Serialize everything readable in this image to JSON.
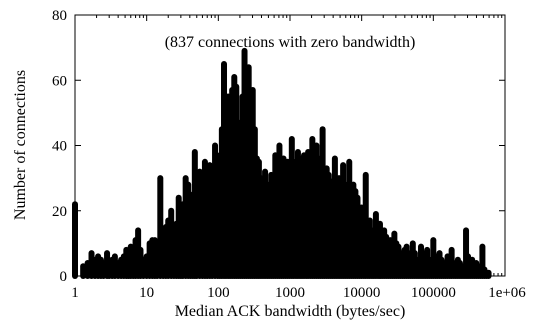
{
  "chart_data": {
    "type": "bar",
    "xlabel": "Median ACK bandwidth (bytes/sec)",
    "ylabel": "Number of connections",
    "annotation": "(837 connections with zero bandwidth)",
    "x_scale": "log",
    "xlim": [
      1,
      1000000
    ],
    "ylim": [
      0,
      80
    ],
    "x_ticks": [
      1,
      10,
      100,
      1000,
      10000,
      100000,
      1000000
    ],
    "x_tick_labels": [
      "1",
      "10",
      "100",
      "1000",
      "10000",
      "100000",
      "1e+06"
    ],
    "y_ticks": [
      0,
      20,
      40,
      60,
      80
    ],
    "y_tick_labels": [
      "0",
      "20",
      "40",
      "60",
      "80"
    ],
    "bar_color": "#000000",
    "x": [
      1.0,
      1.3,
      1.5,
      1.7,
      1.9,
      2.1,
      2.3,
      2.5,
      2.8,
      3.0,
      3.3,
      3.6,
      4.0,
      4.4,
      4.8,
      5.2,
      5.6,
      6.0,
      6.5,
      7.0,
      7.6,
      8.2,
      9.0,
      10.0,
      11.0,
      12.0,
      13.0,
      14.0,
      15.5,
      17.0,
      18.5,
      20.0,
      22.0,
      24.0,
      26.0,
      28.0,
      30.0,
      32.0,
      35.0,
      38.0,
      41.0,
      44.0,
      47.0,
      50.0,
      55.0,
      60.0,
      65.0,
      70.0,
      76.0,
      82.0,
      90.0,
      98.0,
      105.0,
      112.0,
      120.0,
      128.0,
      137.0,
      146.0,
      156.0,
      167.0,
      178.0,
      190.0,
      203.0,
      217.0,
      232.0,
      248.0,
      265.0,
      283.0,
      302.0,
      323.0,
      345.0,
      368.0,
      393.0,
      420.0,
      449.0,
      480.0,
      512.0,
      547.0,
      584.0,
      624.0,
      667.0,
      712.0,
      760.0,
      812.0,
      868.0,
      927.0,
      990.0,
      1060.0,
      1130.0,
      1210.0,
      1290.0,
      1380.0,
      1470.0,
      1570.0,
      1680.0,
      1790.0,
      1920.0,
      2050.0,
      2190.0,
      2340.0,
      2500.0,
      2670.0,
      2850.0,
      3040.0,
      3250.0,
      3470.0,
      3710.0,
      3960.0,
      4230.0,
      4520.0,
      4830.0,
      5160.0,
      5510.0,
      5880.0,
      6280.0,
      6710.0,
      7170.0,
      7660.0,
      8180.0,
      8740.0,
      9330.0,
      9970.0,
      10700.0,
      11400.0,
      12200.0,
      13000.0,
      13900.0,
      14800.0,
      15800.0,
      16900.0,
      18000.0,
      19300.0,
      20600.0,
      22000.0,
      23500.0,
      25100.0,
      26800.0,
      28600.0,
      30500.0,
      32600.0,
      34800.0,
      37200.0,
      39700.0,
      42400.0,
      45300.0,
      48400.0,
      51700.0,
      55200.0,
      59000.0,
      63000.0,
      67300.0,
      71900.0,
      76800.0,
      82000.0,
      87600.0,
      93600.0,
      100000.0,
      107000.0,
      114000.0,
      122000.0,
      130000.0,
      139000.0,
      148000.0,
      158000.0,
      169000.0,
      180000.0,
      193000.0,
      206000.0,
      220000.0,
      235000.0,
      251000.0,
      268000.0,
      286000.0,
      305000.0,
      326000.0,
      348000.0,
      372000.0,
      397000.0,
      424000.0,
      453000.0,
      484000.0,
      517000.0,
      552000.0,
      590000.0
    ],
    "values": [
      22,
      3,
      4,
      7,
      5,
      6,
      5,
      4,
      7,
      3,
      5,
      6,
      4,
      5,
      6,
      8,
      7,
      9,
      6,
      11,
      14,
      8,
      5,
      6,
      10,
      11,
      11,
      9,
      30,
      12,
      15,
      17,
      20,
      14,
      16,
      24,
      18,
      22,
      30,
      28,
      22,
      25,
      38,
      30,
      32,
      27,
      35,
      30,
      34,
      28,
      40,
      33,
      37,
      45,
      65,
      40,
      55,
      50,
      57,
      61,
      58,
      47,
      42,
      55,
      69,
      50,
      64,
      48,
      57,
      45,
      36,
      35,
      30,
      27,
      32,
      24,
      28,
      31,
      30,
      37,
      26,
      40,
      31,
      36,
      25,
      35,
      31,
      42,
      30,
      35,
      38,
      29,
      36,
      37,
      31,
      38,
      34,
      42,
      37,
      40,
      36,
      31,
      45,
      30,
      33,
      31,
      29,
      27,
      36,
      24,
      30,
      26,
      34,
      28,
      27,
      35,
      22,
      28,
      26,
      24,
      20,
      21,
      19,
      31,
      15,
      17,
      14,
      13,
      19,
      12,
      16,
      11,
      14,
      12,
      9,
      11,
      8,
      13,
      10,
      9,
      7,
      6,
      8,
      9,
      7,
      6,
      10,
      7,
      5,
      4,
      9,
      7,
      6,
      8,
      5,
      4,
      11,
      6,
      5,
      7,
      5,
      3,
      4,
      6,
      5,
      8,
      4,
      3,
      5,
      4,
      3,
      2,
      14,
      6,
      4,
      5,
      3,
      4,
      2,
      3,
      9,
      2,
      1,
      1
    ]
  }
}
